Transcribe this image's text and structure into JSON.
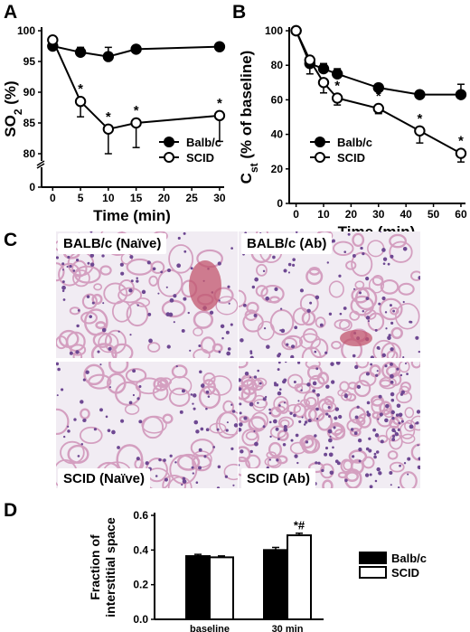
{
  "panels": {
    "a": "A",
    "b": "B",
    "c": "C",
    "d": "D"
  },
  "chart_data": [
    {
      "id": "A",
      "type": "line",
      "xlabel": "Time (min)",
      "ylabel_main": "SO",
      "ylabel_sub": "2",
      "ylabel_unit": " (%)",
      "x_ticks": [
        0,
        5,
        10,
        15,
        20,
        25,
        30
      ],
      "y_ticks": [
        0,
        80,
        85,
        90,
        95,
        100
      ],
      "ylim": [
        0,
        100
      ],
      "y_axis_break": true,
      "series": [
        {
          "name": "Balb/c",
          "marker": "filled",
          "x": [
            0,
            5,
            10,
            15,
            30
          ],
          "y": [
            97.5,
            96.5,
            95.8,
            97.0,
            97.4
          ],
          "err": [
            0.5,
            0.8,
            1.5,
            0.4,
            0.4
          ],
          "stars": [
            false,
            false,
            false,
            false,
            false
          ]
        },
        {
          "name": "SCID",
          "marker": "open",
          "x": [
            0,
            5,
            10,
            15,
            30
          ],
          "y": [
            98.5,
            88.5,
            84.0,
            85.0,
            86.2
          ],
          "err": [
            0.5,
            2.5,
            4.0,
            4.0,
            4.2
          ],
          "stars": [
            false,
            true,
            true,
            true,
            true
          ]
        }
      ],
      "legend_position": "bottom-right",
      "star_label": "*"
    },
    {
      "id": "B",
      "type": "line",
      "xlabel": "Time (min)",
      "ylabel_main": "C",
      "ylabel_sub": "st",
      "ylabel_unit": " (% of baseline)",
      "x_ticks": [
        0,
        10,
        20,
        30,
        40,
        50,
        60
      ],
      "y_ticks": [
        0,
        20,
        40,
        60,
        80,
        100
      ],
      "ylim": [
        0,
        100
      ],
      "series": [
        {
          "name": "Balb/c",
          "marker": "filled",
          "x": [
            0,
            5,
            10,
            15,
            30,
            45,
            60
          ],
          "y": [
            100,
            81,
            78,
            75,
            67,
            63,
            63
          ],
          "err": [
            0,
            3,
            3,
            3,
            2,
            2,
            6
          ],
          "stars": [
            false,
            false,
            false,
            false,
            false,
            false,
            false
          ]
        },
        {
          "name": "SCID",
          "marker": "open",
          "x": [
            0,
            5,
            10,
            15,
            30,
            45,
            60
          ],
          "y": [
            100,
            83,
            70,
            61,
            55,
            42,
            29
          ],
          "err": [
            0,
            8,
            6,
            4,
            3,
            7,
            5
          ],
          "stars": [
            false,
            false,
            false,
            true,
            true,
            true,
            true
          ]
        }
      ],
      "legend_position": "bottom-right",
      "star_label": "*"
    },
    {
      "id": "D",
      "type": "bar",
      "ylabel_line1": "Fraction of",
      "ylabel_line2": "interstitial space",
      "categories": [
        "baseline",
        "30 min"
      ],
      "y_ticks": [
        0.0,
        0.2,
        0.4,
        0.6
      ],
      "y_tick_labels": [
        "0.0",
        "0.2",
        "0.4",
        "0.6"
      ],
      "ylim": [
        0,
        0.6
      ],
      "series": [
        {
          "name": "Balb/c",
          "fill": "#000000",
          "values": [
            0.365,
            0.4
          ],
          "err": [
            0.01,
            0.015
          ]
        },
        {
          "name": "SCID",
          "fill": "#ffffff",
          "values": [
            0.358,
            0.485
          ],
          "err": [
            0.008,
            0.012
          ]
        }
      ],
      "annotation": "*#",
      "legend_position": "right"
    }
  ],
  "histology": {
    "top_left_label": "BALB/c (Naïve)",
    "top_right_label": "BALB/c (Ab)",
    "bottom_left_label": "SCID (Naïve)",
    "bottom_right_label": "SCID (Ab)",
    "stain_colors": {
      "background": "#f1ecf3",
      "tissue": "#d49fc0",
      "nuclei": "#6e4892"
    }
  }
}
